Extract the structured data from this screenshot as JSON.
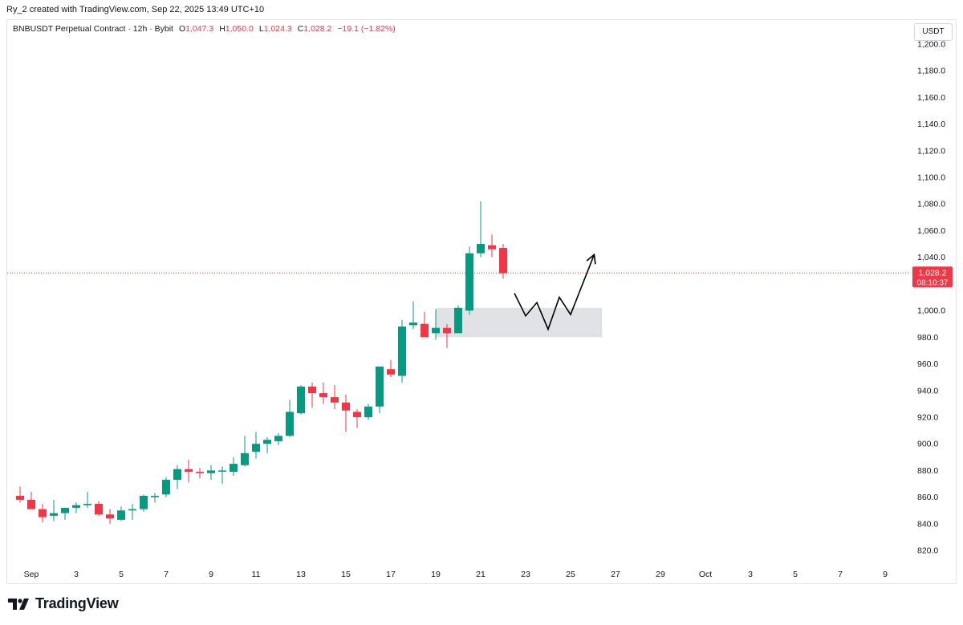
{
  "header": {
    "attribution": "Ry_2 created with TradingView.com, Sep 22, 2025 13:49 UTC+10"
  },
  "legend": {
    "symbol": "BNBUSDT Perpetual Contract · 12h · Bybit",
    "open_label": "O",
    "open": "1,047.3",
    "high_label": "H",
    "high": "1,050.0",
    "low_label": "L",
    "low": "1,024.3",
    "close_label": "C",
    "close": "1,028.2",
    "change": "−19.1 (−1.82%)"
  },
  "price_axis": {
    "currency": "USDT"
  },
  "price_tag": {
    "price": "1,028.2",
    "countdown": "08:10:37"
  },
  "brand": {
    "name": "TradingView"
  },
  "colors": {
    "up": "#089981",
    "down": "#f23645",
    "zone": "#e0e2e5",
    "line": "#f23645"
  },
  "chart_data": {
    "type": "candlestick",
    "ylim": [
      808,
      1218
    ],
    "y_ticks": [
      820,
      840,
      860,
      880,
      900,
      920,
      940,
      960,
      980,
      1000,
      1020,
      1040,
      1060,
      1080,
      1100,
      1120,
      1140,
      1160,
      1180,
      1200
    ],
    "y_tick_labels": [
      "820.0",
      "840.0",
      "860.0",
      "880.0",
      "900.0",
      "920.0",
      "940.0",
      "960.0",
      "980.0",
      "1,000.0",
      "1,020.0",
      "1,040.0",
      "1,060.0",
      "1,080.0",
      "1,100.0",
      "1,120.0",
      "1,140.0",
      "1,160.0",
      "1,180.0",
      "1,200.0"
    ],
    "x_ticks": [
      {
        "day": 1,
        "label": "Sep"
      },
      {
        "day": 3,
        "label": "3"
      },
      {
        "day": 5,
        "label": "5"
      },
      {
        "day": 7,
        "label": "7"
      },
      {
        "day": 9,
        "label": "9"
      },
      {
        "day": 11,
        "label": "11"
      },
      {
        "day": 13,
        "label": "13"
      },
      {
        "day": 15,
        "label": "15"
      },
      {
        "day": 17,
        "label": "17"
      },
      {
        "day": 19,
        "label": "19"
      },
      {
        "day": 21,
        "label": "21"
      },
      {
        "day": 23,
        "label": "23"
      },
      {
        "day": 25,
        "label": "25"
      },
      {
        "day": 27,
        "label": "27"
      },
      {
        "day": 29,
        "label": "29"
      },
      {
        "day": 31,
        "label": "Oct"
      },
      {
        "day": 33,
        "label": "3"
      },
      {
        "day": 35,
        "label": "5"
      },
      {
        "day": 37,
        "label": "7"
      },
      {
        "day": 39,
        "label": "9"
      }
    ],
    "candles": [
      [
        860,
        863,
        858,
        862
      ],
      [
        861,
        868,
        856,
        858
      ],
      [
        858,
        864,
        852,
        851
      ],
      [
        851,
        855,
        841,
        845
      ],
      [
        846,
        858,
        842,
        848
      ],
      [
        848,
        852,
        843,
        852
      ],
      [
        852,
        856,
        848,
        854
      ],
      [
        854,
        864,
        852,
        855
      ],
      [
        855,
        857,
        846,
        847
      ],
      [
        847,
        851,
        840,
        844
      ],
      [
        843,
        853,
        842,
        850
      ],
      [
        850,
        855,
        843,
        851
      ],
      [
        851,
        862,
        849,
        861
      ],
      [
        860,
        863,
        856,
        861
      ],
      [
        862,
        875,
        860,
        873
      ],
      [
        873,
        884,
        866,
        881
      ],
      [
        881,
        888,
        871,
        879
      ],
      [
        879,
        882,
        874,
        878
      ],
      [
        878,
        884,
        873,
        880
      ],
      [
        880,
        883,
        870,
        880
      ],
      [
        879,
        890,
        876,
        885
      ],
      [
        884,
        906,
        883,
        893
      ],
      [
        894,
        909,
        889,
        900
      ],
      [
        900,
        905,
        893,
        903
      ],
      [
        902,
        908,
        899,
        906
      ],
      [
        906,
        933,
        905,
        924
      ],
      [
        923,
        944,
        922,
        943
      ],
      [
        943,
        946,
        927,
        938
      ],
      [
        938,
        946,
        930,
        935
      ],
      [
        935,
        944,
        926,
        931
      ],
      [
        931,
        937,
        909,
        925
      ],
      [
        924,
        926,
        912,
        920
      ],
      [
        920,
        930,
        918,
        928
      ],
      [
        928,
        958,
        923,
        958
      ],
      [
        956,
        963,
        950,
        952
      ],
      [
        951,
        993,
        946,
        988
      ],
      [
        989,
        1007,
        986,
        991
      ],
      [
        990,
        999,
        980,
        980
      ],
      [
        983,
        1001,
        978,
        987
      ],
      [
        987,
        990,
        972,
        983
      ],
      [
        983,
        1004,
        983,
        1002
      ],
      [
        1000,
        1048,
        997,
        1043
      ],
      [
        1043,
        1082,
        1040,
        1050
      ],
      [
        1049,
        1057,
        1040,
        1046
      ],
      [
        1047,
        1050,
        1024,
        1028
      ]
    ],
    "first_candle_day": 0.0,
    "candle_step_days": 0.5,
    "last_price": 1028.2,
    "zone": {
      "from_day": 19.0,
      "to_day": 26.4,
      "low": 980,
      "high": 1002
    },
    "projection": [
      {
        "day": 22.5,
        "price": 1013
      },
      {
        "day": 23.0,
        "price": 996
      },
      {
        "day": 23.5,
        "price": 1006
      },
      {
        "day": 24.0,
        "price": 986
      },
      {
        "day": 24.5,
        "price": 1010
      },
      {
        "day": 25.0,
        "price": 997
      },
      {
        "day": 26.05,
        "price": 1042
      }
    ]
  }
}
